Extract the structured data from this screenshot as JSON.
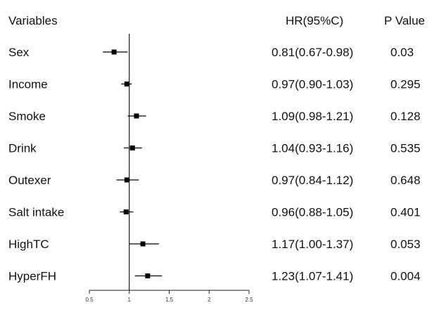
{
  "headers": {
    "variables": "Variables",
    "hr": "HR(95%C)",
    "pvalue": "P Value"
  },
  "chart_data": {
    "type": "forest",
    "title": "",
    "xlabel": "",
    "ylabel": "",
    "xlim": [
      0.5,
      2.5
    ],
    "xticks": [
      0.5,
      1,
      1.5,
      2,
      2.5
    ],
    "xtick_labels": [
      "0.5",
      "1",
      "1.5",
      "2",
      "2.5"
    ],
    "reference_line": 1,
    "grid": false,
    "rows": [
      {
        "variable": "Sex",
        "hr": 0.81,
        "lower": 0.67,
        "upper": 0.98,
        "hr_text": "0.81(0.67-0.98)",
        "p_text": "0.03"
      },
      {
        "variable": "Income",
        "hr": 0.97,
        "lower": 0.9,
        "upper": 1.03,
        "hr_text": "0.97(0.90-1.03)",
        "p_text": "0.295"
      },
      {
        "variable": "Smoke",
        "hr": 1.09,
        "lower": 0.98,
        "upper": 1.21,
        "hr_text": "1.09(0.98-1.21)",
        "p_text": "0.128"
      },
      {
        "variable": "Drink",
        "hr": 1.04,
        "lower": 0.93,
        "upper": 1.16,
        "hr_text": "1.04(0.93-1.16)",
        "p_text": "0.535"
      },
      {
        "variable": "Outexer",
        "hr": 0.97,
        "lower": 0.84,
        "upper": 1.12,
        "hr_text": "0.97(0.84-1.12)",
        "p_text": "0.648"
      },
      {
        "variable": "Salt intake",
        "hr": 0.96,
        "lower": 0.88,
        "upper": 1.05,
        "hr_text": "0.96(0.88-1.05)",
        "p_text": "0.401"
      },
      {
        "variable": "HighTC",
        "hr": 1.17,
        "lower": 1.0,
        "upper": 1.37,
        "hr_text": "1.17(1.00-1.37)",
        "p_text": "0.053"
      },
      {
        "variable": "HyperFH",
        "hr": 1.23,
        "lower": 1.07,
        "upper": 1.41,
        "hr_text": "1.23(1.07-1.41)",
        "p_text": "0.004"
      }
    ],
    "colors": {
      "marker": "#000000",
      "line": "#000000",
      "text": "#111111"
    }
  }
}
